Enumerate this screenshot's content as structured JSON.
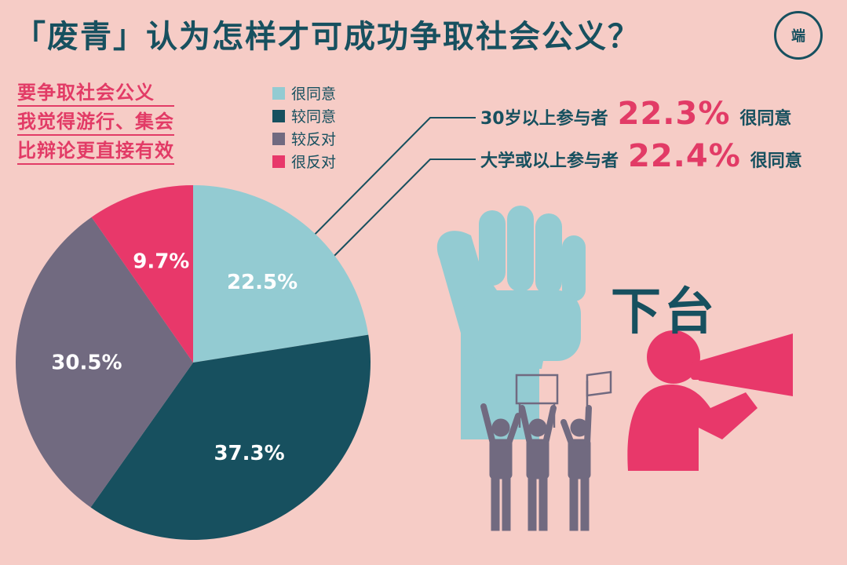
{
  "title": "「废青」认为怎样才可成功争取社会公义？",
  "logo_text": "端",
  "subtitle_lines": [
    "要争取社会公义",
    "我觉得游行、集会",
    "比辩论更直接有效"
  ],
  "legend": [
    {
      "label": "很同意",
      "color": "#93cbd2"
    },
    {
      "label": "较同意",
      "color": "#17505f"
    },
    {
      "label": "较反对",
      "color": "#716a80"
    },
    {
      "label": "很反对",
      "color": "#e8386a"
    }
  ],
  "callouts": [
    {
      "prefix": "30岁以上参与者",
      "value": "22.3%",
      "suffix": "很同意"
    },
    {
      "prefix": "大学或以上参与者",
      "value": "22.4%",
      "suffix": "很同意"
    }
  ],
  "illustration_text": "下台",
  "chart_data": {
    "type": "pie",
    "title": "「废青」认为怎样才可成功争取社会公义？",
    "categories": [
      "很同意",
      "较同意",
      "较反对",
      "很反对"
    ],
    "values": [
      22.5,
      37.3,
      30.5,
      9.7
    ],
    "labels": [
      "22.5%",
      "37.3%",
      "30.5%",
      "9.7%"
    ],
    "colors": [
      "#93cbd2",
      "#17505f",
      "#716a80",
      "#e8386a"
    ],
    "start_angle": "12 o'clock",
    "direction": "clockwise",
    "legend_position": "top-center"
  }
}
